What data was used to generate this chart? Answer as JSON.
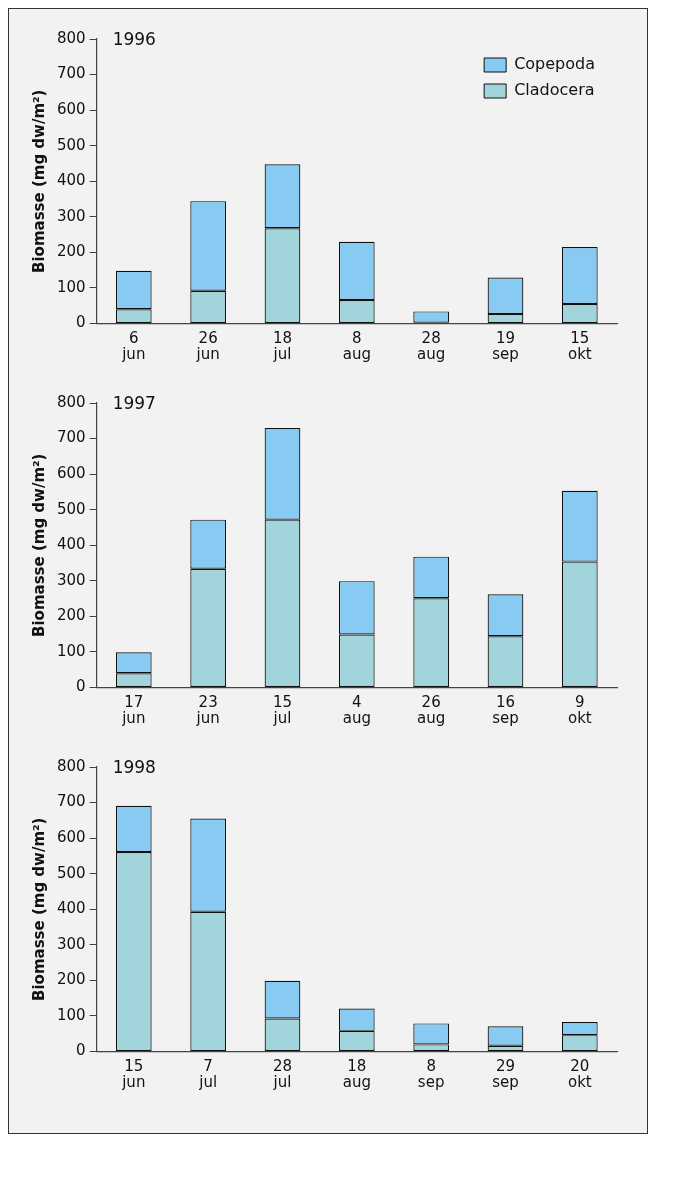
{
  "chart_data": [
    {
      "type": "bar",
      "title": "1996",
      "ylabel": "Biomasse (mg dw/m²)",
      "categories": [
        "6\njun",
        "26\njun",
        "18\njul",
        "8\naug",
        "28\naug",
        "19\nsep",
        "15\nokt"
      ],
      "stacked": true,
      "ylim": [
        0,
        800
      ],
      "yticks": [
        0,
        100,
        200,
        300,
        400,
        500,
        600,
        700,
        800
      ],
      "grid": false,
      "legend": "top right",
      "series": [
        {
          "name": "Cladocera",
          "color": "#a2d5db",
          "values": [
            40,
            92,
            268,
            66,
            2,
            27,
            55
          ]
        },
        {
          "name": "Copepoda",
          "color": "#87cbf3",
          "values": [
            108,
            252,
            180,
            164,
            32,
            102,
            160
          ]
        }
      ]
    },
    {
      "type": "bar",
      "title": "1997",
      "ylabel": "Biomasse (mg dw/m²)",
      "categories": [
        "17\njun",
        "23\njun",
        "15\njul",
        "4\naug",
        "26\naug",
        "16\nsep",
        "9\nokt"
      ],
      "stacked": true,
      "ylim": [
        0,
        800
      ],
      "yticks": [
        0,
        100,
        200,
        300,
        400,
        500,
        600,
        700,
        800
      ],
      "grid": false,
      "series": [
        {
          "color": "#a2d5db",
          "values": [
            40,
            334,
            472,
            149,
            251,
            144,
            354
          ]
        },
        {
          "color": "#87cbf3",
          "values": [
            59,
            138,
            258,
            150,
            117,
            118,
            199
          ]
        }
      ]
    },
    {
      "type": "bar",
      "title": "1998",
      "ylabel": "Biomasse (mg dw/m²)",
      "categories": [
        "15\njun",
        "7\njul",
        "28\njul",
        "18\naug",
        "8\nsep",
        "29\nsep",
        "20\nokt"
      ],
      "stacked": true,
      "ylim": [
        0,
        800
      ],
      "yticks": [
        0,
        100,
        200,
        300,
        400,
        500,
        600,
        700,
        800
      ],
      "grid": false,
      "series": [
        {
          "color": "#a2d5db",
          "values": [
            561,
            393,
            93,
            58,
            20,
            16,
            46
          ]
        },
        {
          "color": "#87cbf3",
          "values": [
            130,
            262,
            106,
            63,
            59,
            55,
            37
          ]
        }
      ]
    }
  ]
}
